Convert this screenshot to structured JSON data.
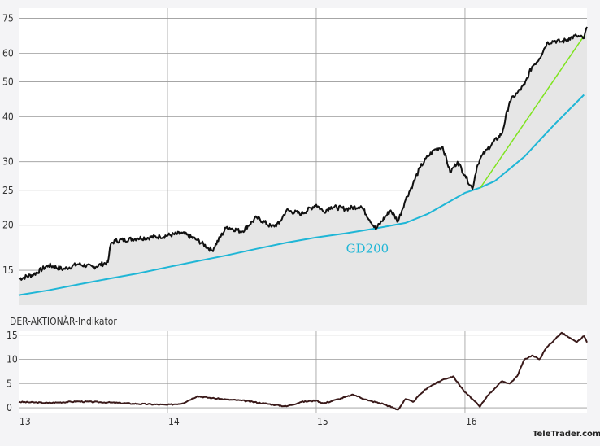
{
  "chart_data": [
    {
      "type": "line",
      "scale": "log",
      "ylim": [
        12,
        80
      ],
      "xlim": [
        13.0,
        16.82
      ],
      "y_ticks": [
        15,
        20,
        25,
        30,
        40,
        50,
        60,
        75
      ],
      "x_ticks": [
        "13",
        "14",
        "15",
        "16"
      ],
      "grid": true,
      "fill_under_price": true,
      "series": [
        {
          "role": "price",
          "color": "#111111",
          "x": [
            13.0,
            13.1,
            13.2,
            13.3,
            13.4,
            13.5,
            13.6,
            13.62,
            13.65,
            13.8,
            13.95,
            14.1,
            14.2,
            14.3,
            14.4,
            14.5,
            14.6,
            14.7,
            14.75,
            14.8,
            14.9,
            15.0,
            15.05,
            15.1,
            15.2,
            15.3,
            15.4,
            15.5,
            15.55,
            15.6,
            15.65,
            15.7,
            15.75,
            15.8,
            15.85,
            15.9,
            15.95,
            16.0,
            16.05,
            16.08,
            16.1,
            16.15,
            16.25,
            16.3,
            16.35,
            16.4,
            16.45,
            16.5,
            16.55,
            16.6,
            16.65,
            16.7,
            16.75,
            16.8,
            16.82
          ],
          "values": [
            14.2,
            14.6,
            15.5,
            15.1,
            15.6,
            15.3,
            15.8,
            17.8,
            18.1,
            18.4,
            18.6,
            19.0,
            18.2,
            17.0,
            19.8,
            19.2,
            21.0,
            19.8,
            20.2,
            22.0,
            21.5,
            22.8,
            21.8,
            22.5,
            22.2,
            22.6,
            19.5,
            22.0,
            20.5,
            23.5,
            26.0,
            29.0,
            31.0,
            32.5,
            33.0,
            28.0,
            30.0,
            27.5,
            25.2,
            29.0,
            30.5,
            32.5,
            36.0,
            44.0,
            46.5,
            49.0,
            55.0,
            58.0,
            64.0,
            65.0,
            64.5,
            66.0,
            67.0,
            66.0,
            71.0
          ]
        },
        {
          "role": "moving-average",
          "name": "GD200",
          "color": "#1fb6d6",
          "x": [
            13.0,
            13.2,
            13.4,
            13.6,
            13.8,
            14.0,
            14.2,
            14.4,
            14.6,
            14.8,
            15.0,
            15.2,
            15.4,
            15.6,
            15.75,
            15.9,
            16.0,
            16.1,
            16.2,
            16.4,
            16.6,
            16.8
          ],
          "values": [
            12.8,
            13.2,
            13.7,
            14.2,
            14.7,
            15.3,
            15.9,
            16.5,
            17.2,
            17.9,
            18.5,
            19.0,
            19.6,
            20.3,
            21.5,
            23.3,
            24.6,
            25.4,
            26.5,
            31.0,
            38.0,
            46.0
          ]
        },
        {
          "role": "trendline",
          "color": "#7ee41e",
          "x": [
            16.1,
            16.8
          ],
          "values": [
            25.3,
            67.0
          ]
        }
      ],
      "annotations": [
        {
          "text": "GD200",
          "x": 15.2,
          "y": 16.8
        }
      ]
    },
    {
      "type": "line",
      "title": "DER-AKTIONÄR-Indikator",
      "ylim": [
        -1,
        15.8
      ],
      "xlim": [
        13.0,
        16.82
      ],
      "y_ticks": [
        0,
        5,
        10,
        15
      ],
      "x_ticks": [
        "13",
        "14",
        "15",
        "16"
      ],
      "grid": true,
      "series": [
        {
          "role": "indicator",
          "color": "#3a1a1a",
          "x": [
            13.0,
            13.2,
            13.4,
            13.6,
            13.8,
            14.0,
            14.1,
            14.2,
            14.3,
            14.4,
            14.5,
            14.65,
            14.8,
            14.9,
            15.0,
            15.05,
            15.15,
            15.25,
            15.35,
            15.45,
            15.55,
            15.6,
            15.65,
            15.7,
            15.75,
            15.85,
            15.92,
            16.0,
            16.05,
            16.1,
            16.15,
            16.2,
            16.25,
            16.3,
            16.35,
            16.4,
            16.45,
            16.5,
            16.55,
            16.6,
            16.65,
            16.7,
            16.75,
            16.8,
            16.82
          ],
          "values": [
            1.2,
            1.0,
            1.3,
            1.1,
            0.8,
            0.6,
            0.9,
            2.4,
            2.0,
            1.7,
            1.5,
            0.9,
            0.3,
            1.2,
            1.5,
            0.9,
            1.8,
            2.7,
            1.5,
            0.8,
            -0.4,
            1.8,
            1.2,
            2.8,
            4.2,
            5.8,
            6.5,
            3.2,
            1.8,
            0.2,
            2.5,
            4.0,
            5.5,
            5.0,
            6.5,
            10.0,
            10.8,
            10.0,
            12.5,
            14.0,
            15.5,
            14.5,
            13.5,
            14.8,
            13.5
          ]
        }
      ]
    }
  ],
  "page": {
    "brand": "TeleTrader.com"
  }
}
